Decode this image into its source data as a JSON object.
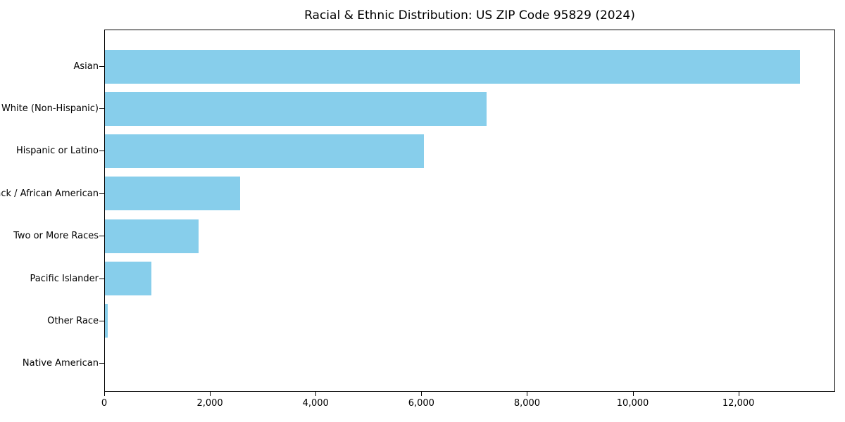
{
  "chart_data": {
    "type": "bar",
    "orientation": "horizontal",
    "title": "Racial & Ethnic Distribution: US ZIP Code 95829 (2024)",
    "categories": [
      "Asian",
      "White (Non-Hispanic)",
      "Hispanic or Latino",
      "Black / African American",
      "Two or More Races",
      "Pacific Islander",
      "Other Race",
      "Native American"
    ],
    "values": [
      13170,
      7230,
      6050,
      2560,
      1770,
      880,
      60,
      0
    ],
    "xlabel": "",
    "ylabel": "",
    "xlim": [
      0,
      13830
    ],
    "x_ticks": [
      0,
      2000,
      4000,
      6000,
      8000,
      10000,
      12000
    ],
    "x_tick_labels": [
      "0",
      "2,000",
      "4,000",
      "6,000",
      "8,000",
      "10,000",
      "12,000"
    ],
    "bar_color": "#87CEEB",
    "axis_color": "#000000",
    "background_color": "#ffffff",
    "grid": false,
    "legend": null
  }
}
